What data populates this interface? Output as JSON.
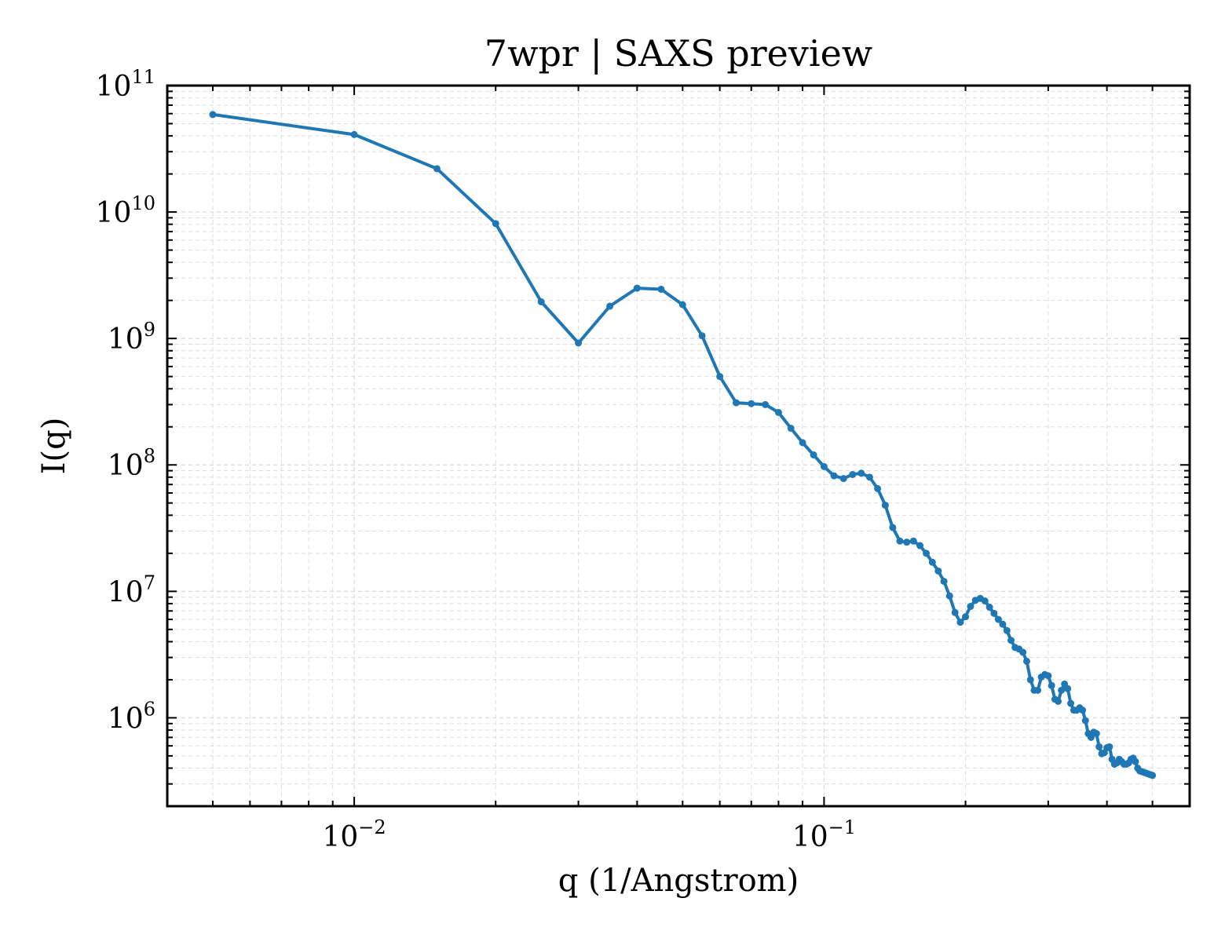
{
  "chart_data": {
    "type": "line",
    "title": "7wpr | SAXS preview",
    "xlabel": "q (1/Angstrom)",
    "ylabel": "I(q)",
    "xscale": "log",
    "yscale": "log",
    "xlim": [
      0.004,
      0.6
    ],
    "ylim": [
      200000,
      100000000000
    ],
    "grid": true,
    "legend": "none",
    "colors": {
      "series": "#1f77b4",
      "grid": "#dddddd",
      "axes": "#000000"
    },
    "x_ticks": [
      {
        "base": "10",
        "exp": "−2",
        "value": 0.01
      },
      {
        "base": "10",
        "exp": "−1",
        "value": 0.1
      }
    ],
    "y_ticks": [
      {
        "base": "10",
        "exp": "6",
        "value": 1000000
      },
      {
        "base": "10",
        "exp": "7",
        "value": 10000000
      },
      {
        "base": "10",
        "exp": "8",
        "value": 100000000
      },
      {
        "base": "10",
        "exp": "9",
        "value": 1000000000
      },
      {
        "base": "10",
        "exp": "10",
        "value": 10000000000
      },
      {
        "base": "10",
        "exp": "11",
        "value": 100000000000
      }
    ],
    "series": [
      {
        "x": [
          0.005,
          0.01,
          0.015,
          0.02,
          0.025,
          0.03,
          0.035,
          0.04,
          0.045,
          0.05,
          0.055,
          0.06,
          0.065,
          0.07,
          0.075,
          0.08,
          0.085,
          0.09,
          0.095,
          0.1,
          0.105,
          0.11,
          0.115,
          0.12,
          0.125,
          0.13,
          0.135,
          0.14,
          0.145,
          0.15,
          0.155,
          0.16,
          0.165,
          0.17,
          0.175,
          0.18,
          0.185,
          0.19,
          0.195,
          0.2,
          0.205,
          0.21,
          0.215,
          0.22,
          0.225,
          0.23,
          0.235,
          0.24,
          0.245,
          0.25,
          0.255,
          0.26,
          0.265,
          0.27,
          0.275,
          0.28,
          0.285,
          0.29,
          0.295,
          0.3,
          0.305,
          0.31,
          0.315,
          0.32,
          0.325,
          0.33,
          0.335,
          0.34,
          0.345,
          0.35,
          0.355,
          0.36,
          0.365,
          0.37,
          0.375,
          0.38,
          0.385,
          0.39,
          0.395,
          0.4,
          0.405,
          0.41,
          0.415,
          0.42,
          0.425,
          0.43,
          0.435,
          0.44,
          0.445,
          0.45,
          0.455,
          0.46,
          0.465,
          0.47,
          0.475,
          0.48,
          0.485,
          0.49,
          0.495,
          0.5
        ],
        "y": [
          59000000000,
          41000000000,
          22000000000,
          8100000000,
          1950000000,
          920000000,
          1800000000,
          2500000000,
          2450000000,
          1850000000,
          1050000000,
          500000000,
          310000000,
          305000000,
          300000000,
          260000000,
          195000000,
          150000000,
          120000000,
          97000000,
          82000000,
          78000000,
          84000000,
          86000000,
          80000000,
          65000000,
          48000000,
          32000000,
          25000000,
          24500000,
          25000000,
          23000000,
          20000000,
          17000000,
          14500000,
          12000000,
          9200000,
          6800000,
          5700000,
          6300000,
          7600000,
          8500000,
          8800000,
          8400000,
          7500000,
          6700000,
          6000000,
          5500000,
          4900000,
          4100000,
          3600000,
          3500000,
          3300000,
          2800000,
          2000000,
          1650000,
          1650000,
          2100000,
          2200000,
          2150000,
          1800000,
          1400000,
          1350000,
          1650000,
          1850000,
          1700000,
          1300000,
          1150000,
          1150000,
          1200000,
          1150000,
          950000,
          750000,
          700000,
          770000,
          750000,
          590000,
          520000,
          530000,
          580000,
          590000,
          470000,
          430000,
          440000,
          470000,
          450000,
          430000,
          430000,
          440000,
          470000,
          480000,
          450000,
          400000,
          380000,
          375000,
          370000,
          365000,
          360000,
          355000,
          350000
        ]
      }
    ]
  }
}
